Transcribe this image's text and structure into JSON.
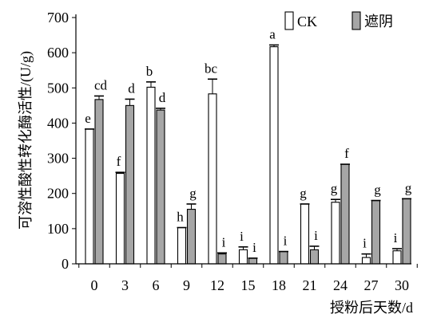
{
  "chart_data": {
    "type": "bar",
    "xlabel": "授粉后天数/d",
    "ylabel": "可溶性酸性转化酶活性/(U/g)",
    "ylim": [
      0,
      700
    ],
    "yticks": [
      0,
      100,
      200,
      300,
      400,
      500,
      600,
      700
    ],
    "categories": [
      "0",
      "3",
      "6",
      "9",
      "12",
      "15",
      "18",
      "21",
      "24",
      "27",
      "30"
    ],
    "legend_position": "top-right",
    "grid": false,
    "series": [
      {
        "name": "CK",
        "color": "#ffffff",
        "values": [
          383,
          257,
          502,
          103,
          483,
          40,
          617,
          170,
          175,
          18,
          37
        ],
        "errors": [
          0,
          3,
          15,
          0,
          42,
          8,
          5,
          0,
          8,
          10,
          6
        ],
        "significance": [
          "e",
          "f",
          "b",
          "h",
          "bc",
          "i",
          "a",
          "g",
          "g",
          "i",
          "i"
        ]
      },
      {
        "name": "遮阴",
        "color": "#a6a6a6",
        "values": [
          467,
          450,
          437,
          155,
          28,
          16,
          35,
          40,
          283,
          180,
          185
        ],
        "errors": [
          10,
          18,
          5,
          15,
          3,
          0,
          0,
          10,
          0,
          0,
          0
        ],
        "significance": [
          "cd",
          "d",
          "d",
          "g",
          "i",
          "i",
          "i",
          "i",
          "f",
          "g",
          "g"
        ]
      }
    ]
  }
}
